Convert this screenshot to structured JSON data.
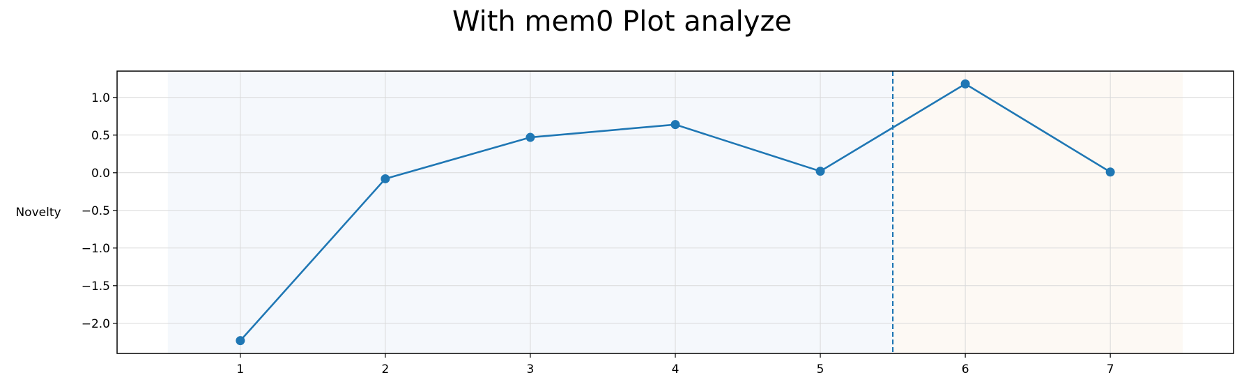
{
  "chart_data": {
    "type": "line",
    "title": "With mem0 Plot analyze",
    "xlabel": "",
    "ylabel": "Novelty",
    "x": [
      1,
      2,
      3,
      4,
      5,
      6,
      7
    ],
    "series": [
      {
        "values": [
          -2.23,
          -0.08,
          0.47,
          0.64,
          0.02,
          1.18,
          0.01
        ],
        "color": "#1f77b4"
      }
    ],
    "xticks": [
      "1",
      "2",
      "3",
      "4",
      "5",
      "6",
      "7"
    ],
    "yticks": [
      "1.0",
      "0.5",
      "0.0",
      "−0.5",
      "−1.0",
      "−1.5",
      "−2.0"
    ],
    "ytick_values": [
      1.0,
      0.5,
      0.0,
      -0.5,
      -1.0,
      -1.5,
      -2.0
    ],
    "xlim": [
      0.15,
      7.85
    ],
    "ylim": [
      -2.4,
      1.35
    ],
    "grid": true,
    "vline_x": 5.5,
    "shaded_regions": [
      {
        "from": 0.5,
        "to": 5.5,
        "color": "#f5f8fc"
      },
      {
        "from": 5.5,
        "to": 7.5,
        "color": "#fdf9f4"
      }
    ]
  }
}
